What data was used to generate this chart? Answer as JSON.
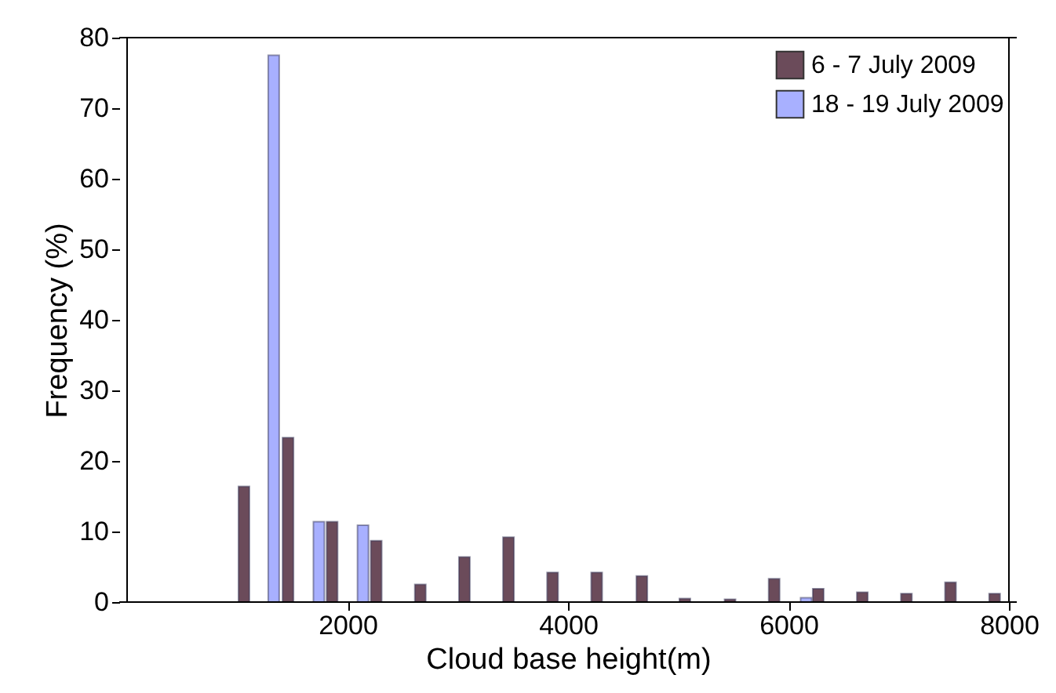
{
  "chart_data": {
    "type": "bar",
    "xlabel": "Cloud base height(m)",
    "ylabel": "Frequency (%)",
    "xlim": [
      0,
      8000
    ],
    "xticks": [
      2000,
      4000,
      6000,
      8000
    ],
    "ylim": [
      0,
      80
    ],
    "yticks": [
      0,
      10,
      20,
      30,
      40,
      50,
      60,
      70,
      80
    ],
    "grid": false,
    "legend": "top right",
    "series": [
      {
        "name": "6 - 7 July 2009",
        "color": "#6b4b5a",
        "x": [
          1060,
          1460,
          1860,
          2260,
          2660,
          3060,
          3460,
          3860,
          4260,
          4670,
          5060,
          5470,
          5870,
          6270,
          6670,
          7070,
          7470,
          7870
        ],
        "values": [
          16.4,
          23.3,
          11.4,
          8.7,
          2.5,
          6.4,
          9.2,
          4.2,
          4.2,
          3.7,
          0.5,
          0.4,
          3.3,
          1.9,
          1.4,
          1.2,
          2.8,
          1.2
        ]
      },
      {
        "name": "18 - 19 July 2009",
        "color": "#a8b0ff",
        "x": [
          1330,
          1740,
          2140,
          6160
        ],
        "values": [
          77.5,
          11.4,
          10.9,
          0.6
        ]
      }
    ]
  }
}
